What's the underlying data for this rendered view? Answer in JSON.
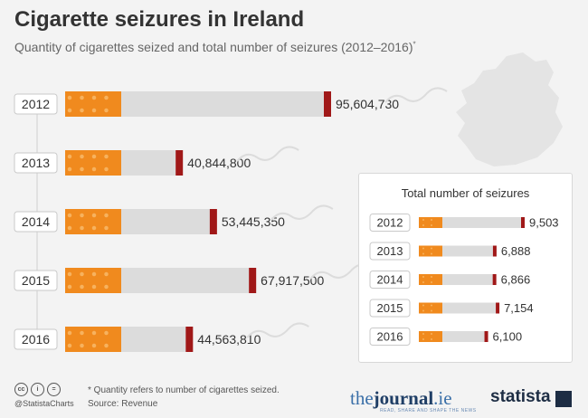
{
  "title": "Cigarette seizures in Ireland",
  "subtitle": "Quantity of cigarettes seized and total number of seizures (2012–2016)",
  "subtitle_mark": "*",
  "panel_title": "Total number of seizures",
  "footer": {
    "cc_icons": [
      "cc",
      "i",
      "="
    ],
    "handle": "@StatistaCharts",
    "note": "* Quantity refers to number of cigarettes seized.",
    "source": "Source: Revenue",
    "journal_pre": "the",
    "journal_bold": "journal",
    "journal_post": ".ie",
    "journal_tag": "READ, SHARE AND SHAPE THE NEWS",
    "brand": "statista"
  },
  "colors": {
    "filter": "#f08a1e",
    "paper": "#dcdcdc",
    "ember": "#a01818",
    "map": "#e4e4e4"
  },
  "chart_data": [
    {
      "type": "bar",
      "title": "Quantity of cigarettes seized",
      "categories": [
        "2012",
        "2013",
        "2014",
        "2015",
        "2016"
      ],
      "values": [
        95604730,
        40844800,
        53445350,
        67917500,
        44563810
      ],
      "labels": [
        "95,604,730",
        "40,844,800",
        "53,445,350",
        "67,917,500",
        "44,563,810"
      ],
      "xlim": [
        0,
        95604730
      ]
    },
    {
      "type": "bar",
      "title": "Total number of seizures",
      "categories": [
        "2012",
        "2013",
        "2014",
        "2015",
        "2016"
      ],
      "values": [
        9503,
        6888,
        6866,
        7154,
        6100
      ],
      "labels": [
        "9,503",
        "6,888",
        "6,866",
        "7,154",
        "6,100"
      ],
      "xlim": [
        0,
        9503
      ]
    }
  ]
}
